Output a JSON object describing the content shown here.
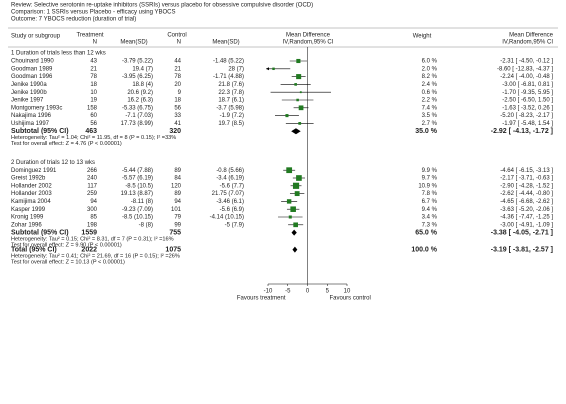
{
  "chart_data": {
    "type": "forest",
    "header": {
      "review": "Review:  Selective serotonin re-uptake inhibitors (SSRIs) versus placebo for obsessive compulsive disorder (OCD)",
      "comparison": "Comparison:  1 SSRIs versus Placebo - efficacy using YBOCS",
      "outcome": "Outcome:  7 YBOCS reduction (duration of trial)"
    },
    "columns": {
      "study": "Study or subgroup",
      "treatment": "Treatment",
      "control": "Control",
      "n": "N",
      "mean_sd": "Mean(SD)",
      "md_title": "Mean Difference",
      "md_method": "IV,Random,95% CI",
      "weight": "Weight"
    },
    "groups": [
      {
        "title": "1 Duration of trials less than 12 wks",
        "studies": [
          {
            "study": "Chouinard 1990",
            "t_n": 43,
            "t_mean": "-3.79 (5.22)",
            "c_n": 44,
            "c_mean": "-1.48 (5.22)",
            "weight": 6.0,
            "weight_label": "6.0 %",
            "md": -2.31,
            "lo": -4.5,
            "hi": -0.12,
            "md_label": "-2.31 [ -4.50, -0.12 ]"
          },
          {
            "study": "Goodman 1989",
            "t_n": 21,
            "t_mean": "19.4 (7)",
            "c_n": 21,
            "c_mean": "28 (7)",
            "weight": 2.0,
            "weight_label": "2.0 %",
            "md": -8.6,
            "lo": -12.83,
            "hi": -4.37,
            "md_label": "-8.60 [ -12.83, -4.37 ]"
          },
          {
            "study": "Goodman 1996",
            "t_n": 78,
            "t_mean": "-3.95 (6.25)",
            "c_n": 78,
            "c_mean": "-1.71 (4.88)",
            "weight": 8.2,
            "weight_label": "8.2 %",
            "md": -2.24,
            "lo": -4.0,
            "hi": -0.48,
            "md_label": "-2.24 [ -4.00, -0.48 ]"
          },
          {
            "study": "Jenike 1990a",
            "t_n": 18,
            "t_mean": "18.8 (4)",
            "c_n": 20,
            "c_mean": "21.8 (7.6)",
            "weight": 2.4,
            "weight_label": "2.4 %",
            "md": -3.0,
            "lo": -6.81,
            "hi": 0.81,
            "md_label": "-3.00 [ -6.81, 0.81 ]"
          },
          {
            "study": "Jenike 1990b",
            "t_n": 10,
            "t_mean": "20.6 (9.2)",
            "c_n": 9,
            "c_mean": "22.3 (7.8)",
            "weight": 0.6,
            "weight_label": "0.6 %",
            "md": -1.7,
            "lo": -9.35,
            "hi": 5.95,
            "md_label": "-1.70 [ -9.35, 5.95 ]"
          },
          {
            "study": "Jenike 1997",
            "t_n": 19,
            "t_mean": "16.2 (6.3)",
            "c_n": 18,
            "c_mean": "18.7 (6.1)",
            "weight": 2.2,
            "weight_label": "2.2 %",
            "md": -2.5,
            "lo": -6.5,
            "hi": 1.5,
            "md_label": "-2.50 [ -6.50, 1.50 ]"
          },
          {
            "study": "Montgomery 1993c",
            "t_n": 158,
            "t_mean": "-5.33 (6.75)",
            "c_n": 56,
            "c_mean": "-3.7 (5.98)",
            "weight": 7.4,
            "weight_label": "7.4 %",
            "md": -1.63,
            "lo": -3.52,
            "hi": 0.26,
            "md_label": "-1.63 [ -3.52, 0.26 ]"
          },
          {
            "study": "Nakajima 1996",
            "t_n": 60,
            "t_mean": "-7.1 (7.03)",
            "c_n": 33,
            "c_mean": "-1.9 (7.2)",
            "weight": 3.5,
            "weight_label": "3.5 %",
            "md": -5.2,
            "lo": -8.23,
            "hi": -2.17,
            "md_label": "-5.20 [ -8.23, -2.17 ]"
          },
          {
            "study": "Ushijima 1997",
            "t_n": 56,
            "t_mean": "17.73 (8.99)",
            "c_n": 41,
            "c_mean": "19.7 (8.5)",
            "weight": 2.7,
            "weight_label": "2.7 %",
            "md": -1.97,
            "lo": -5.48,
            "hi": 1.54,
            "md_label": "-1.97 [ -5.48, 1.54 ]"
          }
        ],
        "subtotal": {
          "label": "Subtotal (95% CI)",
          "t_n": 463,
          "c_n": 320,
          "weight": 35.0,
          "weight_label": "35.0 %",
          "md": -2.92,
          "lo": -4.13,
          "hi": -1.72,
          "md_label": "-2.92 [ -4.13, -1.72 ]"
        },
        "heterogeneity": "Heterogeneity: Tau² = 1.04; Chi² = 11.95, df = 8 (P = 0.15); I² =33%",
        "overall": "Test for overall effect: Z = 4.76 (P < 0.00001)"
      },
      {
        "title": "2 Duration of trials 12 to 13 wks",
        "studies": [
          {
            "study": "Dominguez 1991",
            "t_n": 266,
            "t_mean": "-5.44 (7.88)",
            "c_n": 89,
            "c_mean": "-0.8 (5.66)",
            "weight": 9.9,
            "weight_label": "9.9 %",
            "md": -4.64,
            "lo": -6.15,
            "hi": -3.13,
            "md_label": "-4.64 [ -6.15, -3.13 ]"
          },
          {
            "study": "Greist 1992b",
            "t_n": 240,
            "t_mean": "-5.57 (6.19)",
            "c_n": 84,
            "c_mean": "-3.4 (6.19)",
            "weight": 9.7,
            "weight_label": "9.7 %",
            "md": -2.17,
            "lo": -3.71,
            "hi": -0.63,
            "md_label": "-2.17 [ -3.71, -0.63 ]"
          },
          {
            "study": "Hollander 2002",
            "t_n": 117,
            "t_mean": "-8.5 (10.5)",
            "c_n": 120,
            "c_mean": "-5.6 (7.7)",
            "weight": 10.9,
            "weight_label": "10.9 %",
            "md": -2.9,
            "lo": -4.28,
            "hi": -1.52,
            "md_label": "-2.90 [ -4.28, -1.52 ]"
          },
          {
            "study": "Hollander 2003",
            "t_n": 259,
            "t_mean": "19.13 (8.87)",
            "c_n": 89,
            "c_mean": "21.75 (7.07)",
            "weight": 7.8,
            "weight_label": "7.8 %",
            "md": -2.62,
            "lo": -4.44,
            "hi": -0.8,
            "md_label": "-2.62 [ -4.44, -0.80 ]"
          },
          {
            "study": "Kamijima 2004",
            "t_n": 94,
            "t_mean": "-8.11 (8)",
            "c_n": 94,
            "c_mean": "-3.46 (6.1)",
            "weight": 6.7,
            "weight_label": "6.7 %",
            "md": -4.65,
            "lo": -6.68,
            "hi": -2.62,
            "md_label": "-4.65 [ -6.68, -2.62 ]"
          },
          {
            "study": "Kasper 1999",
            "t_n": 300,
            "t_mean": "-9.23 (7.09)",
            "c_n": 101,
            "c_mean": "-5.6 (6.9)",
            "weight": 9.4,
            "weight_label": "9.4 %",
            "md": -3.63,
            "lo": -5.2,
            "hi": -2.06,
            "md_label": "-3.63 [ -5.20, -2.06 ]"
          },
          {
            "study": "Kronig 1999",
            "t_n": 85,
            "t_mean": "-8.5 (10.15)",
            "c_n": 79,
            "c_mean": "-4.14 (10.15)",
            "weight": 3.4,
            "weight_label": "3.4 %",
            "md": -4.36,
            "lo": -7.47,
            "hi": -1.25,
            "md_label": "-4.36 [ -7.47, -1.25 ]"
          },
          {
            "study": "Zohar 1996",
            "t_n": 198,
            "t_mean": "-8 (8)",
            "c_n": 99,
            "c_mean": "-5 (7.9)",
            "weight": 7.3,
            "weight_label": "7.3 %",
            "md": -3.0,
            "lo": -4.91,
            "hi": -1.09,
            "md_label": "-3.00 [ -4.91, -1.09 ]"
          }
        ],
        "subtotal": {
          "label": "Subtotal (95% CI)",
          "t_n": 1559,
          "c_n": 755,
          "weight": 65.0,
          "weight_label": "65.0 %",
          "md": -3.38,
          "lo": -4.05,
          "hi": -2.71,
          "md_label": "-3.38 [ -4.05, -2.71 ]"
        },
        "heterogeneity": "Heterogeneity: Tau² = 0.15; Chi² = 8.31, df = 7 (P = 0.31); I² =16%",
        "overall": "Test for overall effect: Z = 9.90 (P < 0.00001)"
      }
    ],
    "total": {
      "label": "Total (95% CI)",
      "t_n": 2022,
      "c_n": 1075,
      "weight": 100.0,
      "weight_label": "100.0 %",
      "md": -3.19,
      "lo": -3.81,
      "hi": -2.57,
      "md_label": "-3.19 [ -3.81, -2.57 ]",
      "heterogeneity": "Heterogeneity: Tau² = 0.41; Chi² = 21.69, df = 16 (P = 0.15); I² =26%",
      "overall": "Test for overall effect: Z = 10.13 (P < 0.00001)"
    },
    "xlim": [
      -10,
      10
    ],
    "xticks": [
      -10,
      -5,
      0,
      5,
      10
    ],
    "favours_left": "Favours treatment",
    "favours_right": "Favours control",
    "marker_color": "#217a21",
    "diamond_color": "#000000"
  }
}
